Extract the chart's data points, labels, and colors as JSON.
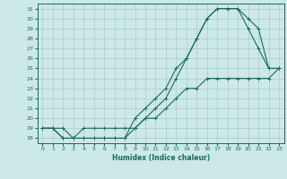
{
  "xlabel": "Humidex (Indice chaleur)",
  "bg_color": "#cce8e8",
  "grid_color": "#aacccc",
  "line_color": "#1a6b5a",
  "xlim": [
    -0.5,
    23.5
  ],
  "ylim": [
    17.5,
    31.5
  ],
  "xticks": [
    0,
    1,
    2,
    3,
    4,
    5,
    6,
    7,
    8,
    9,
    10,
    11,
    12,
    13,
    14,
    15,
    16,
    17,
    18,
    19,
    20,
    21,
    22,
    23
  ],
  "yticks": [
    18,
    19,
    20,
    21,
    22,
    23,
    24,
    25,
    26,
    27,
    28,
    29,
    30,
    31
  ],
  "line1_x": [
    0,
    1,
    2,
    3,
    4,
    5,
    6,
    7,
    8,
    9,
    10,
    11,
    12,
    13,
    14,
    15,
    16,
    17,
    18,
    19,
    20,
    21,
    22,
    23
  ],
  "line1_y": [
    19,
    19,
    18,
    18,
    18,
    18,
    18,
    18,
    18,
    20,
    21,
    22,
    23,
    25,
    26,
    28,
    30,
    31,
    31,
    31,
    30,
    29,
    25,
    25
  ],
  "line2_x": [
    0,
    1,
    2,
    3,
    4,
    5,
    6,
    7,
    8,
    9,
    10,
    11,
    12,
    13,
    14,
    15,
    16,
    17,
    18,
    19,
    20,
    21,
    22,
    23
  ],
  "line2_y": [
    19,
    19,
    18,
    18,
    18,
    18,
    18,
    18,
    18,
    19,
    20,
    21,
    22,
    24,
    26,
    28,
    30,
    31,
    31,
    31,
    29,
    27,
    25,
    25
  ],
  "line3_x": [
    0,
    1,
    2,
    3,
    4,
    5,
    6,
    7,
    8,
    9,
    10,
    11,
    12,
    13,
    14,
    15,
    16,
    17,
    18,
    19,
    20,
    21,
    22,
    23
  ],
  "line3_y": [
    19,
    19,
    19,
    18,
    19,
    19,
    19,
    19,
    19,
    19,
    20,
    20,
    21,
    22,
    23,
    23,
    24,
    24,
    24,
    24,
    24,
    24,
    24,
    25
  ]
}
